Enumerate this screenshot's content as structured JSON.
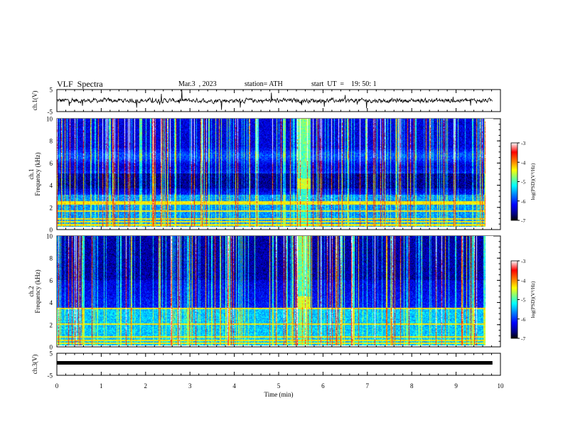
{
  "header": {
    "title": "VLF  Spectra",
    "date": "Mar.3  , 2023",
    "station": "station= ATH",
    "start_ut": "start  UT  =    19: 50: 1"
  },
  "chart_data": [
    {
      "type": "line",
      "name": "ch1-waveform",
      "ylabel": "ch.1(V)",
      "ylim": [
        -5,
        5
      ],
      "yticks": [
        "5",
        "-5"
      ],
      "xlim": [
        0,
        10
      ],
      "data_extent_x": [
        0,
        9.82
      ],
      "baseline": 0,
      "grid": false
    },
    {
      "type": "heatmap",
      "name": "ch1-spectrogram",
      "ylabel": "ch.1\nFrequency  (kHz)",
      "ylim": [
        0,
        10
      ],
      "yticks": [
        "0",
        "2",
        "4",
        "6",
        "8",
        "10"
      ],
      "xlim": [
        0,
        10
      ],
      "data_extent_x": [
        0,
        9.82
      ],
      "colorbar": {
        "label": "log(PSD)(V²/Hz)",
        "range": [
          -7,
          -3
        ],
        "ticks": [
          "-3",
          "-4",
          "-5",
          "-6",
          "-7"
        ],
        "colors": [
          "#000000",
          "#00007f",
          "#0000ff",
          "#007fff",
          "#00ffff",
          "#7fff7f",
          "#ffff00",
          "#ff7f00",
          "#ff0000",
          "#ffffff"
        ]
      },
      "features": {
        "burst_x": [
          5.5,
          5.8
        ],
        "dark_band_khz": [
          3.6,
          5.0
        ],
        "strong_lines_khz": [
          0.2,
          0.5,
          0.75,
          1.5,
          2.15,
          2.3
        ]
      }
    },
    {
      "type": "heatmap",
      "name": "ch2-spectrogram",
      "ylabel": "ch.2\nFrequency  (kHz)",
      "ylim": [
        0,
        10
      ],
      "yticks": [
        "0",
        "2",
        "4",
        "6",
        "8",
        "10"
      ],
      "xlim": [
        0,
        10
      ],
      "data_extent_x": [
        0,
        9.82
      ],
      "colorbar": {
        "label": "log(PSD)(V²/Hz)",
        "range": [
          -7,
          -3
        ],
        "ticks": [
          "-3",
          "-4",
          "-5",
          "-6",
          "-7"
        ],
        "colors": [
          "#000000",
          "#00007f",
          "#0000ff",
          "#007fff",
          "#00ffff",
          "#7fff7f",
          "#ffff00",
          "#ff7f00",
          "#ff0000",
          "#ffffff"
        ]
      },
      "features": {
        "burst_x": [
          5.5,
          5.8
        ],
        "dark_band_khz": [
          6.0,
          10.0
        ],
        "strong_lines_khz": [
          0.2,
          0.5,
          0.8,
          2.0,
          3.4
        ]
      }
    },
    {
      "type": "line",
      "name": "ch3-waveform",
      "ylabel": "ch.3(V)",
      "ylim": [
        -5,
        5
      ],
      "yticks": [
        "5",
        "-5"
      ],
      "xlim": [
        0,
        10
      ],
      "data_extent_x": [
        0,
        9.82
      ],
      "baseline": 0,
      "xlabel": "Time  (min)",
      "xticks": [
        "0",
        "1",
        "2",
        "3",
        "4",
        "5",
        "6",
        "7",
        "8",
        "9",
        "10"
      ],
      "grid": false
    }
  ]
}
